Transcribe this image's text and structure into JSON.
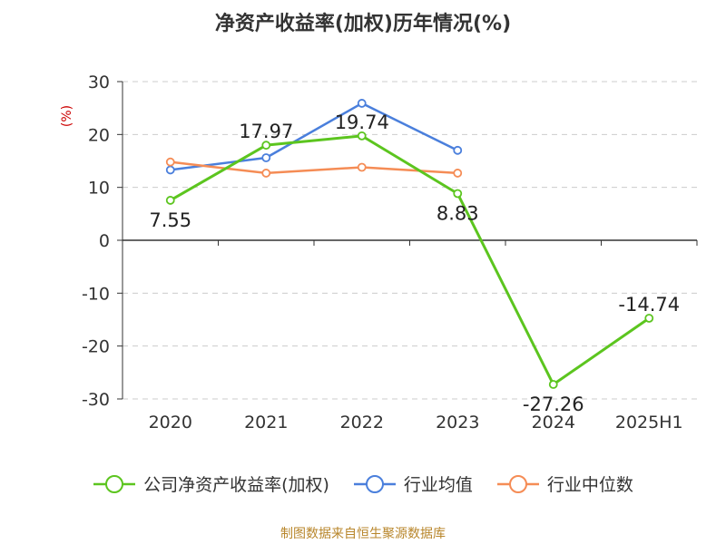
{
  "chart_data": {
    "type": "line",
    "title": "净资产收益率(加权)历年情况(%)",
    "ylabel": "(%)",
    "categories": [
      "2020",
      "2021",
      "2022",
      "2023",
      "2024",
      "2025H1"
    ],
    "ylim": [
      -30,
      30
    ],
    "yticks": [
      "30",
      "20",
      "10",
      "0",
      "-10",
      "-20",
      "-30"
    ],
    "grid": true,
    "legend_position": "bottom",
    "series": [
      {
        "name": "公司净资产收益率(加权)",
        "color": "#5cc51f",
        "values": [
          7.55,
          17.97,
          19.74,
          8.83,
          -27.26,
          -14.74
        ],
        "labels": [
          "7.55",
          "17.97",
          "19.74",
          "8.83",
          "-27.26",
          "-14.74"
        ]
      },
      {
        "name": "行业均值",
        "color": "#4a7fdc",
        "values": [
          13.3,
          15.6,
          25.9,
          17.0,
          null,
          null
        ]
      },
      {
        "name": "行业中位数",
        "color": "#f58c55",
        "values": [
          14.8,
          12.7,
          13.8,
          12.7,
          null,
          null
        ]
      }
    ]
  },
  "source_note": "制图数据来自恒生聚源数据库"
}
